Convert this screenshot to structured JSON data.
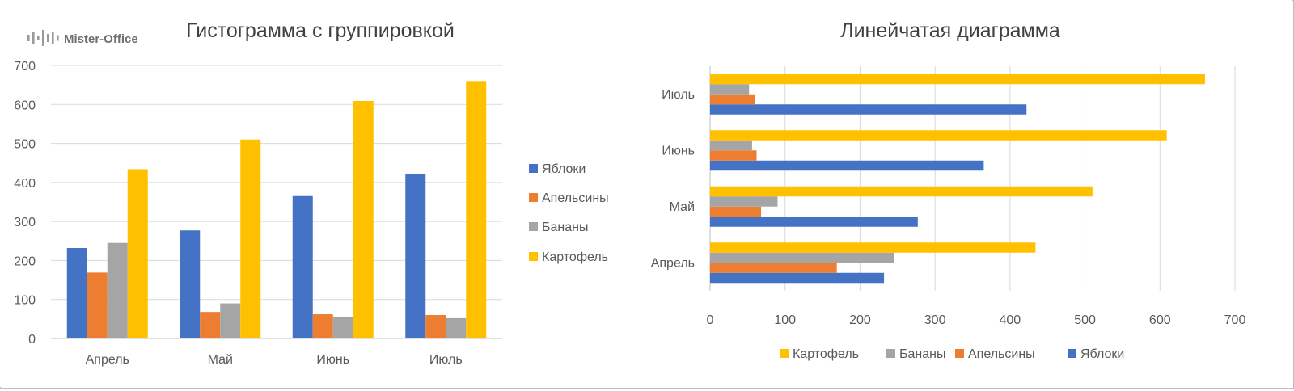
{
  "logo": {
    "text": "Mister-Office"
  },
  "chart_data": [
    {
      "type": "bar",
      "orientation": "vertical",
      "title": "Гистограмма с группировкой",
      "categories": [
        "Апрель",
        "Май",
        "Июнь",
        "Июль"
      ],
      "series": [
        {
          "name": "Яблоки",
          "color": "#4472C4",
          "values": [
            232,
            277,
            365,
            422
          ]
        },
        {
          "name": "Апельсины",
          "color": "#ED7D31",
          "values": [
            169,
            68,
            62,
            60
          ]
        },
        {
          "name": "Бананы",
          "color": "#A5A5A5",
          "values": [
            245,
            90,
            56,
            52
          ]
        },
        {
          "name": "Картофель",
          "color": "#FFC000",
          "values": [
            434,
            510,
            609,
            660
          ]
        }
      ],
      "ylim": [
        0,
        700
      ],
      "yticks": [
        "0",
        "100",
        "200",
        "300",
        "400",
        "500",
        "600",
        "700"
      ],
      "grid": true,
      "legend_position": "right"
    },
    {
      "type": "bar",
      "orientation": "horizontal",
      "title": "Линейчатая диаграмма",
      "categories": [
        "Апрель",
        "Май",
        "Июнь",
        "Июль"
      ],
      "series": [
        {
          "name": "Яблоки",
          "color": "#4472C4",
          "values": [
            232,
            277,
            365,
            422
          ]
        },
        {
          "name": "Апельсины",
          "color": "#ED7D31",
          "values": [
            169,
            68,
            62,
            60
          ]
        },
        {
          "name": "Бананы",
          "color": "#A5A5A5",
          "values": [
            245,
            90,
            56,
            52
          ]
        },
        {
          "name": "Картофель",
          "color": "#FFC000",
          "values": [
            434,
            510,
            609,
            660
          ]
        }
      ],
      "xlim": [
        0,
        700
      ],
      "xticks": [
        "0",
        "100",
        "200",
        "300",
        "400",
        "500",
        "600",
        "700"
      ],
      "grid": true,
      "legend_position": "bottom",
      "legend_order": [
        "Картофель",
        "Бананы",
        "Апельсины",
        "Яблоки"
      ]
    }
  ]
}
